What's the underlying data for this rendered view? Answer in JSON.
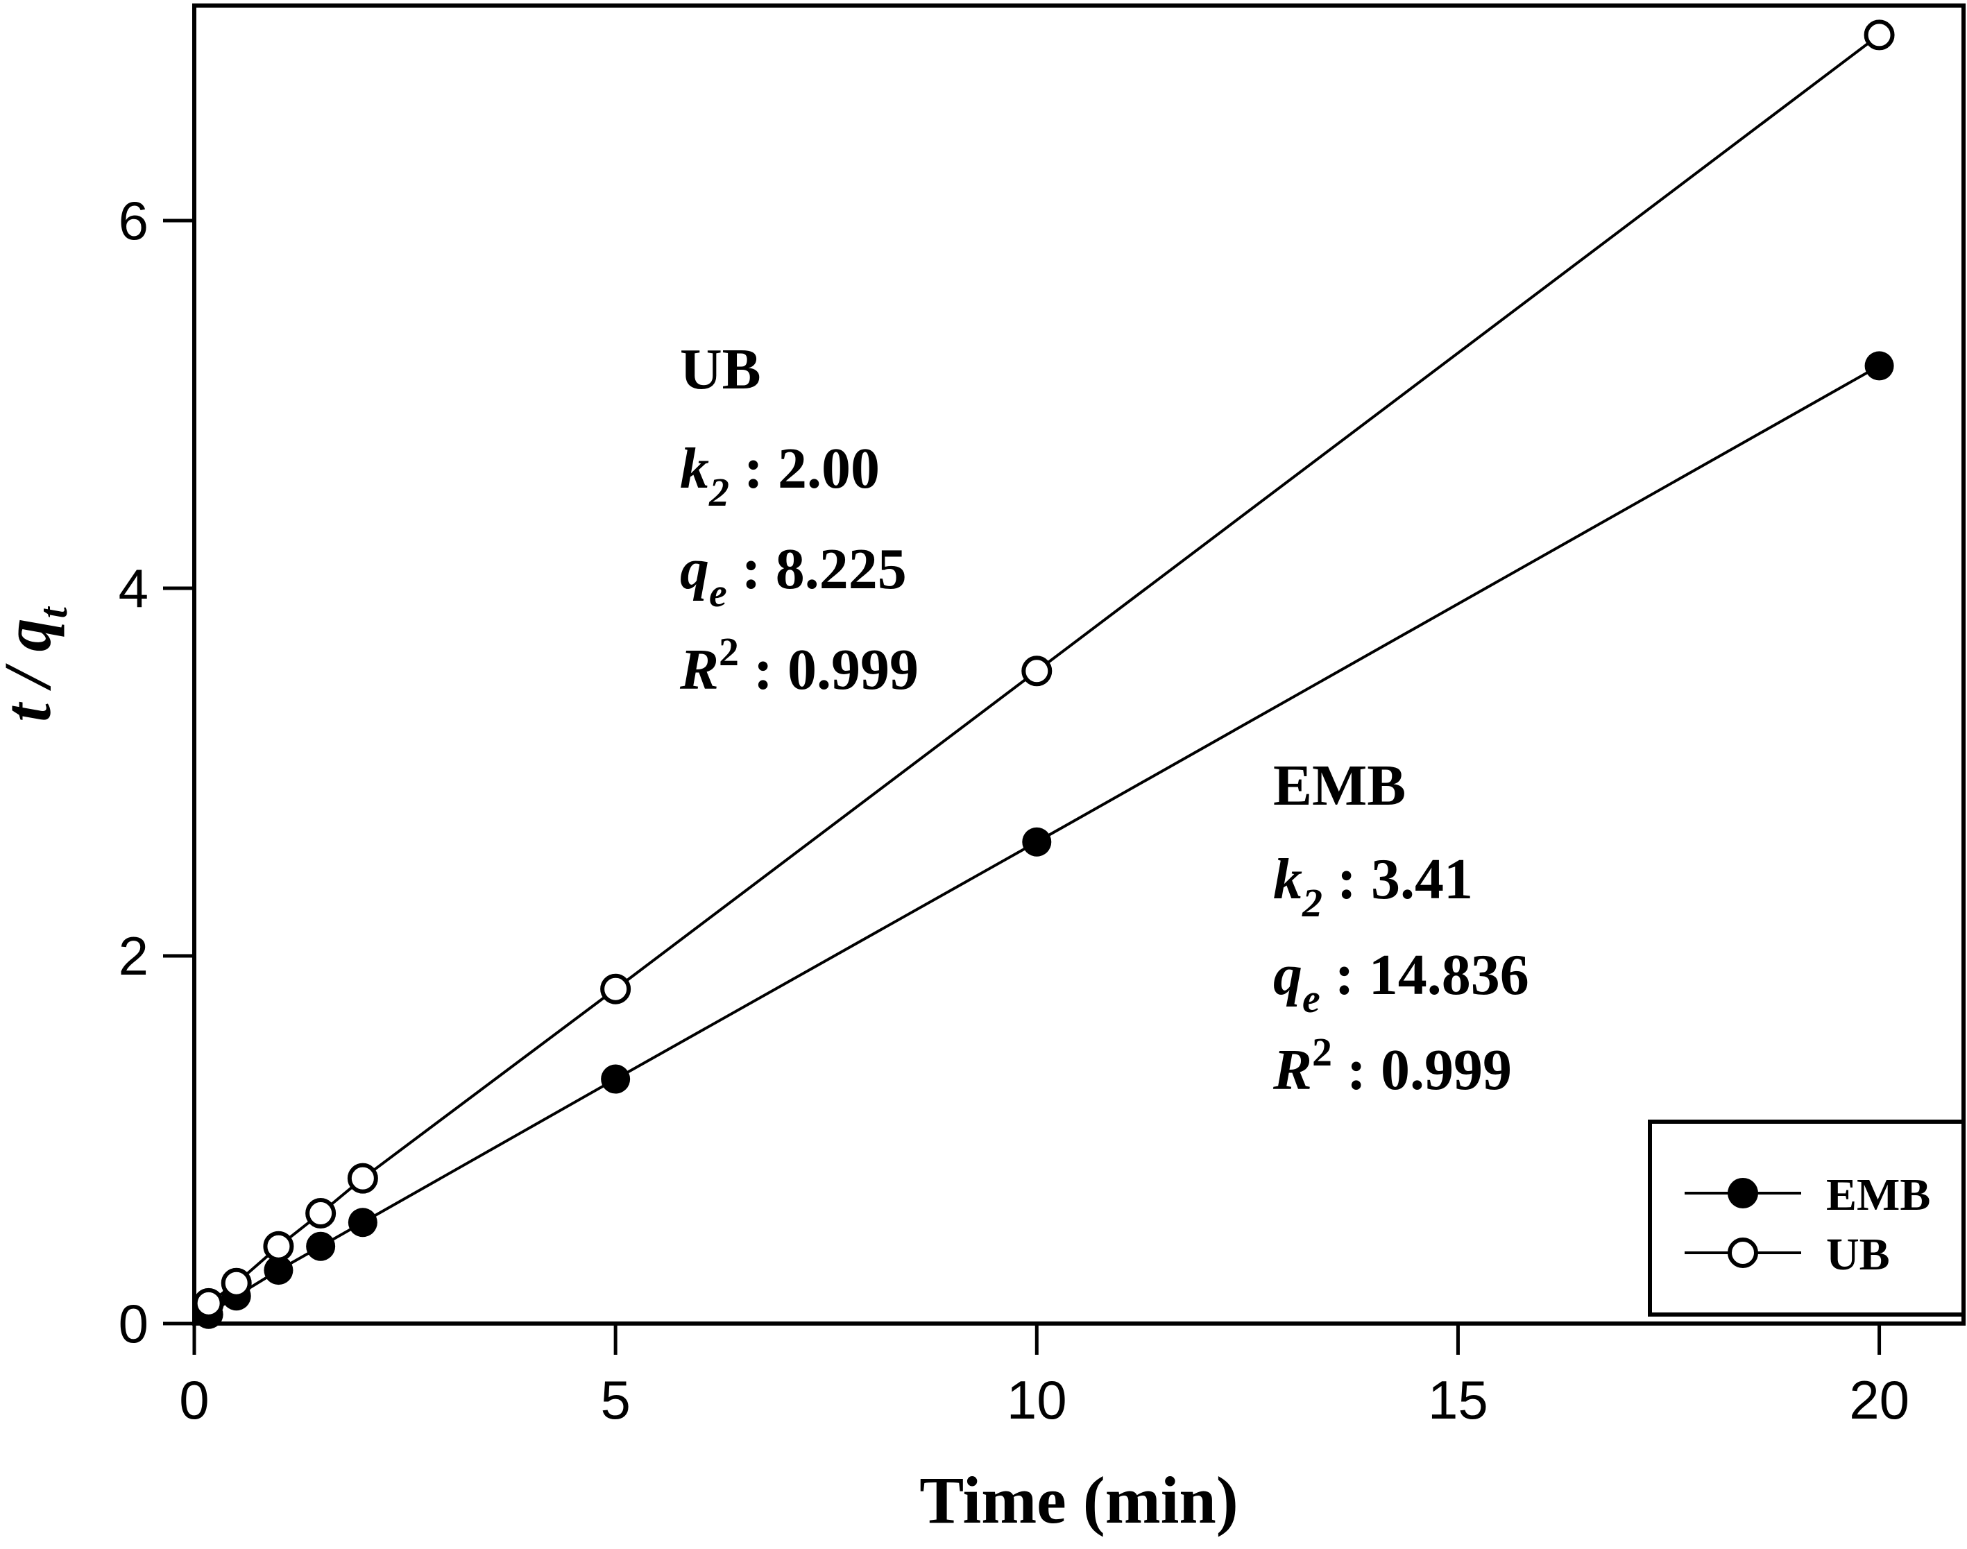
{
  "figure": {
    "background": "#ffffff",
    "foreground": "#000000"
  },
  "chart_data": {
    "type": "line",
    "title": "",
    "xlabel": "Time (min)",
    "ylabel_main": "t / q",
    "ylabel_sub": "t",
    "xlim": [
      0,
      21
    ],
    "ylim": [
      0,
      7.17
    ],
    "x_ticks": [
      0,
      5,
      10,
      15,
      20
    ],
    "y_ticks": [
      0,
      2,
      4,
      6
    ],
    "grid": false,
    "legend_position": "lower right",
    "x": [
      0.17,
      0.5,
      1,
      1.5,
      2,
      5,
      10,
      20
    ],
    "series": [
      {
        "name": "EMB",
        "marker": "filled-circle",
        "color": "#000000",
        "values": [
          0.05,
          0.15,
          0.29,
          0.42,
          0.55,
          1.33,
          2.62,
          5.21
        ]
      },
      {
        "name": "UB",
        "marker": "open-circle",
        "color": "#000000",
        "values": [
          0.11,
          0.22,
          0.42,
          0.6,
          0.79,
          1.82,
          3.55,
          7.01
        ]
      }
    ],
    "annotations": [
      {
        "title": "UB",
        "k2_text": " : 2.00",
        "qe_text": " : 8.225",
        "r2_text": " : 0.999"
      },
      {
        "title": "EMB",
        "k2_text": " : 3.41",
        "qe_text": " : 14.836",
        "r2_text": " : 0.999"
      }
    ]
  },
  "symbols": {
    "k": "k",
    "k_sub": "2",
    "q": "q",
    "q_sub": "e",
    "r": "R",
    "r_sup": "2"
  },
  "legend": {
    "items": [
      {
        "label": "EMB",
        "marker": "filled-circle"
      },
      {
        "label": "UB",
        "marker": "open-circle"
      }
    ]
  }
}
